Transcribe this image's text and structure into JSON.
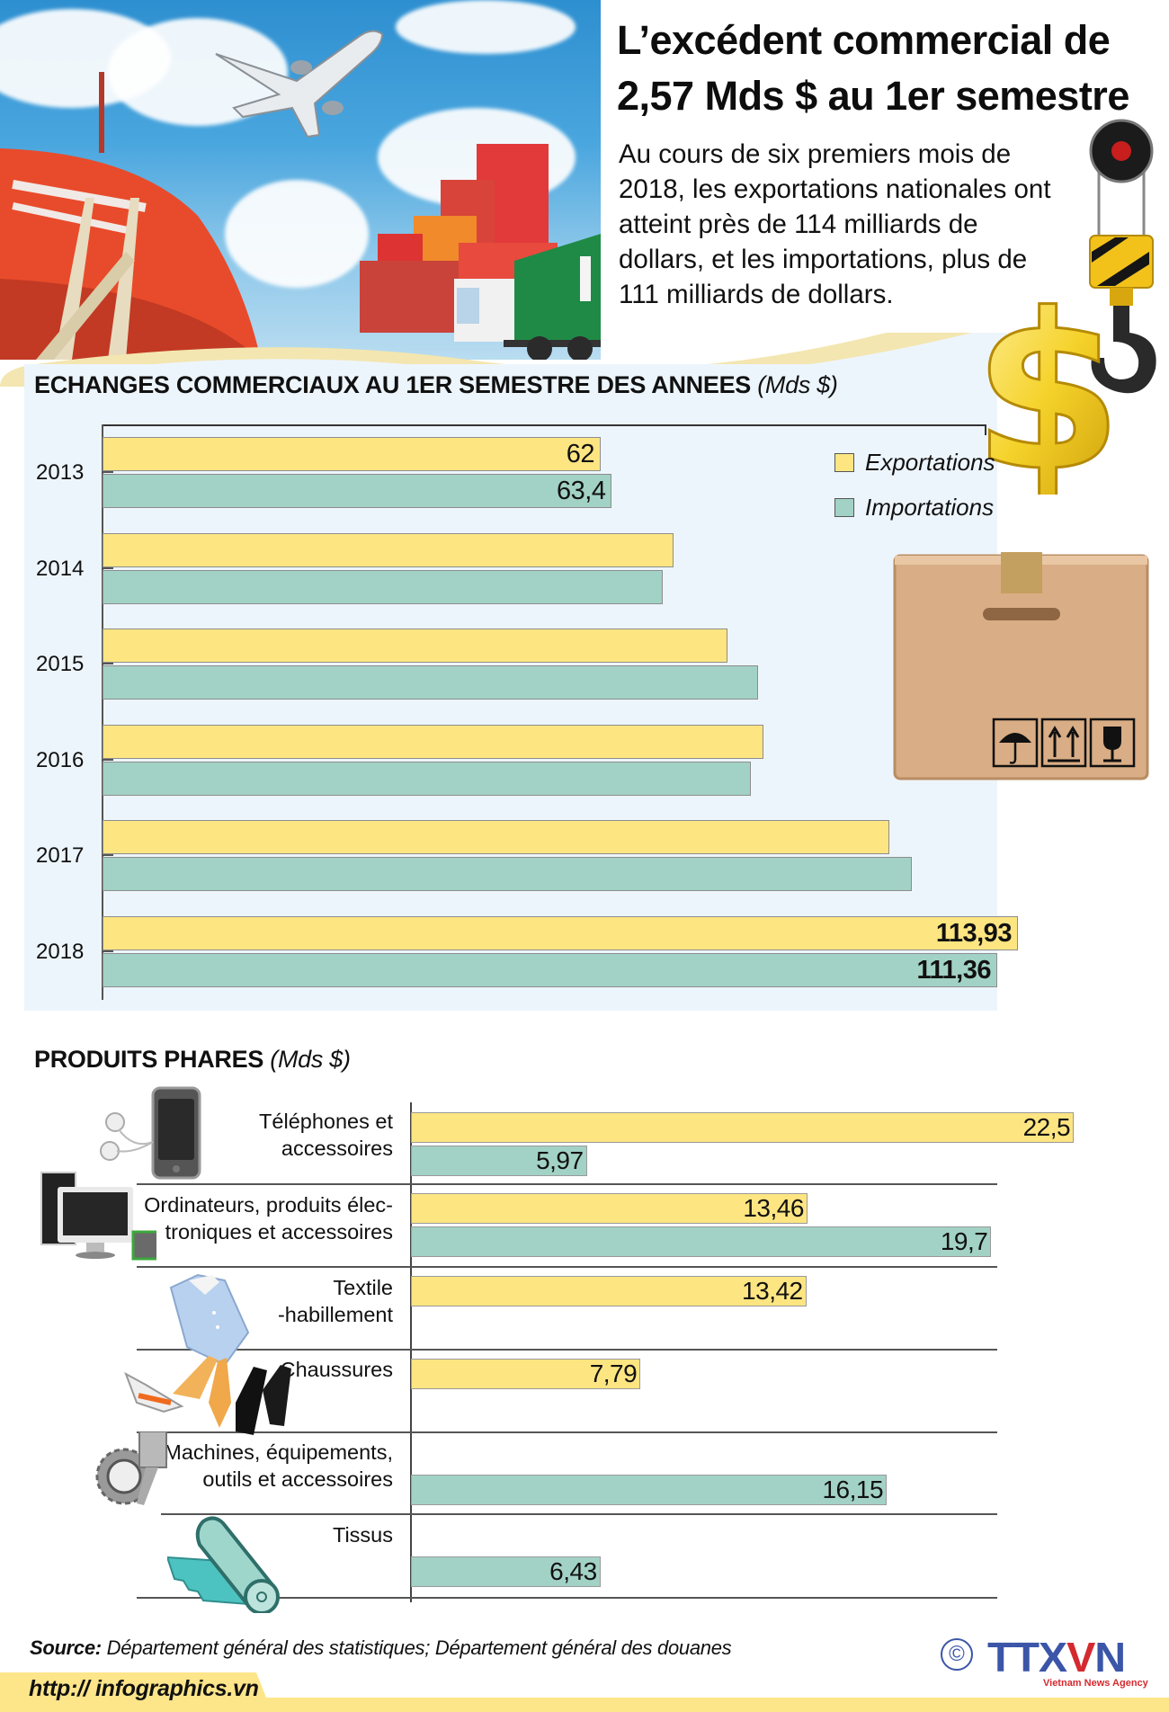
{
  "header": {
    "title_line1": "L’excédent commercial de",
    "title_line2": "2,57 Mds $ au 1er semestre",
    "intro_lines": [
      "Au cours de six premiers mois de",
      "2018, les exportations nationales ont",
      "atteint près de 114 milliards de",
      "dollars, et les importations, plus de",
      "111 milliards de dollars."
    ]
  },
  "icons": {
    "hero": "trade-photo-ship-plane-containers",
    "crane": "crane-hook-icon",
    "dollar": "gold-dollar-icon",
    "box": "cardboard-box-icon",
    "box_symbols": [
      "umbrella-keep-dry-icon",
      "this-way-up-arrows-icon",
      "fragile-glass-icon"
    ],
    "products": [
      "phone-earphones-icon",
      "computer-chip-icon",
      "shirt-icon",
      "shoes-icon",
      "gear-piston-icon",
      "fabric-roll-icon"
    ]
  },
  "colors": {
    "exports": "#fde582",
    "imports": "#a2d2c5",
    "panel_bg": "#edf5fc",
    "footer_band": "#fde58a",
    "logo_blue": "#3b55a8",
    "logo_red": "#d42a2f"
  },
  "chart_data": [
    {
      "type": "bar",
      "orientation": "horizontal",
      "title": "ECHANGES COMMERCIAUX AU 1ER SEMESTRE DES ANNEES",
      "unit": "(Mds $)",
      "categories": [
        "2013",
        "2014",
        "2015",
        "2016",
        "2017",
        "2018"
      ],
      "series": [
        {
          "name": "Exportations",
          "values": [
            62,
            71.1,
            77.8,
            82.3,
            97.9,
            113.93
          ],
          "labels": [
            "62",
            "",
            "",
            "",
            "",
            "113,93"
          ]
        },
        {
          "name": "Importations",
          "values": [
            63.4,
            69.7,
            81.6,
            80.7,
            100.7,
            111.36
          ],
          "labels": [
            "63,4",
            "",
            "",
            "",
            "",
            "111,36"
          ]
        }
      ],
      "legend": [
        "Exportations",
        "Importations"
      ],
      "legend_position": "top-right",
      "grid": false,
      "xlim": [
        0,
        125
      ]
    },
    {
      "type": "bar",
      "orientation": "horizontal",
      "title": "PRODUITS PHARES",
      "unit": "(Mds $)",
      "categories": [
        "Téléphones et accessoires",
        "Ordinateurs, produits électroniques et accessoires",
        "Textile -habillement",
        "Chaussures",
        "Machines, équipements, outils et accessoires",
        "Tissus"
      ],
      "series": [
        {
          "name": "Exportations",
          "values": [
            22.5,
            13.46,
            13.42,
            7.79,
            null,
            null
          ],
          "labels": [
            "22,5",
            "13,46",
            "13,42",
            "7,79",
            "",
            ""
          ]
        },
        {
          "name": "Importations",
          "values": [
            5.97,
            19.7,
            null,
            null,
            16.15,
            6.43
          ],
          "labels": [
            "5,97",
            "19,7",
            "",
            "",
            "16,15",
            "6,43"
          ]
        }
      ],
      "grid": false,
      "xlim": [
        0,
        25
      ]
    }
  ],
  "chart1": {
    "title": "ECHANGES COMMERCIAUX AU 1ER SEMESTRE DES ANNEES",
    "unit": "(Mds $)",
    "legend": {
      "exports": "Exportations",
      "imports": "Importations"
    }
  },
  "chart2": {
    "title": "PRODUITS PHARES",
    "unit": "(Mds $)",
    "products": [
      {
        "label_lines": [
          "Téléphones et",
          "accessoires"
        ]
      },
      {
        "label_lines": [
          "Ordinateurs, produits élec-",
          "troniques et accessoires"
        ]
      },
      {
        "label_lines": [
          "Textile",
          "-habillement"
        ]
      },
      {
        "label_lines": [
          "Chaussures"
        ]
      },
      {
        "label_lines": [
          "Machines, équipements,",
          "outils et accessoires"
        ]
      },
      {
        "label_lines": [
          "Tissus"
        ]
      }
    ]
  },
  "footer": {
    "source_label": "Source:",
    "source_text": " Département général des statistiques; Département général des douanes",
    "url": "http:// infographics.vn",
    "copyright": "©",
    "logo_text_a": "TTX",
    "logo_text_v": "V",
    "logo_text_b": "N",
    "logo_sub": "Vietnam News Agency"
  }
}
